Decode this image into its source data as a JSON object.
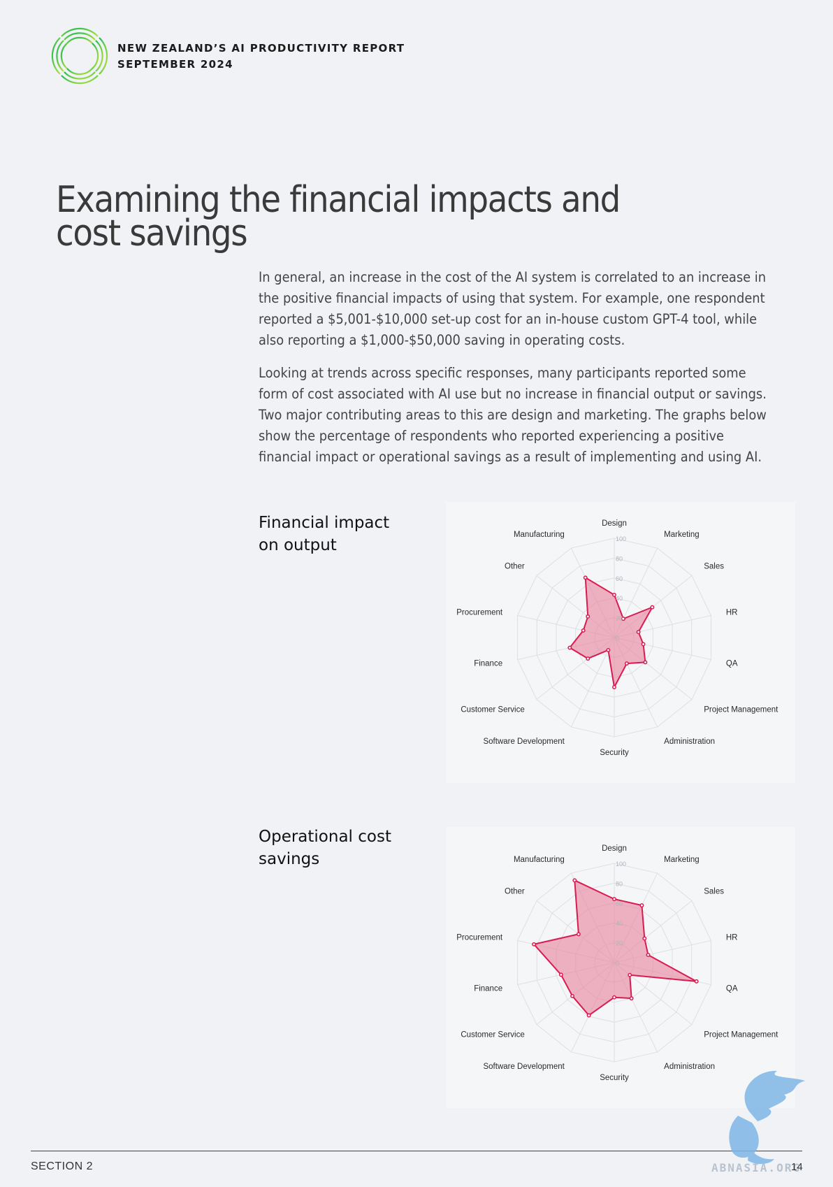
{
  "header": {
    "report_title": "NEW ZEALAND’S AI PRODUCTIVITY REPORT",
    "date": "SEPTEMBER 2024"
  },
  "heading": {
    "line1": "Examining the financial impacts and",
    "line2": "cost savings"
  },
  "paragraphs": [
    "In general, an increase in the cost of the AI system is correlated to an increase in the positive financial impacts of using that system. For example, one respondent reported a $5,001-$10,000 set-up cost for an in-house custom GPT-4 tool, while also reporting a $1,000-$50,000 saving in operating costs.",
    "Looking at trends across specific responses, many participants reported some form of cost associated with AI use but no increase in financial output or savings. Two major contributing areas to this are design and marketing. The graphs below show the percentage of respondents who reported experiencing a positive financial impact or operational savings as a result of implementing and using AI."
  ],
  "charts_titles": [
    "Financial impact on output",
    "Operational cost savings"
  ],
  "chart_data": [
    {
      "type": "radar",
      "title": "Financial impact on output",
      "categories": [
        "Design",
        "Marketing",
        "Sales",
        "HR",
        "QA",
        "Project Management",
        "Administration",
        "Security",
        "Software Development",
        "Customer Service",
        "Finance",
        "Procurement",
        "Other",
        "Manufacturing"
      ],
      "values": [
        43,
        21,
        49,
        25,
        30,
        40,
        29,
        50,
        14,
        34,
        46,
        32,
        34,
        67
      ],
      "rlim": [
        0,
        100
      ],
      "ticks": [
        0,
        20,
        40,
        60,
        80,
        100
      ],
      "tick_labels": [
        "0",
        "20",
        "40",
        "60",
        "80",
        "100"
      ],
      "fill_color": "#e8849e",
      "line_color": "#d81b50",
      "grid": true
    },
    {
      "type": "radar",
      "title": "Operational cost savings",
      "categories": [
        "Design",
        "Marketing",
        "Sales",
        "HR",
        "QA",
        "Project Management",
        "Administration",
        "Security",
        "Software Development",
        "Customer Service",
        "Finance",
        "Procurement",
        "Other",
        "Manufacturing"
      ],
      "values": [
        64,
        64,
        39,
        35,
        85,
        20,
        40,
        35,
        59,
        54,
        55,
        83,
        46,
        92
      ],
      "rlim": [
        0,
        100
      ],
      "ticks": [
        0,
        20,
        40,
        60,
        80,
        100
      ],
      "tick_labels": [
        "0",
        "20",
        "40",
        "60",
        "80",
        "100"
      ],
      "fill_color": "#e8849e",
      "line_color": "#d81b50",
      "grid": true
    }
  ],
  "footer": {
    "section": "SECTION 2",
    "page": "14",
    "watermark": "ABNASIA.ORG"
  },
  "colors": {
    "accent": "#d81b50",
    "logo_green": "#3ec43e"
  }
}
